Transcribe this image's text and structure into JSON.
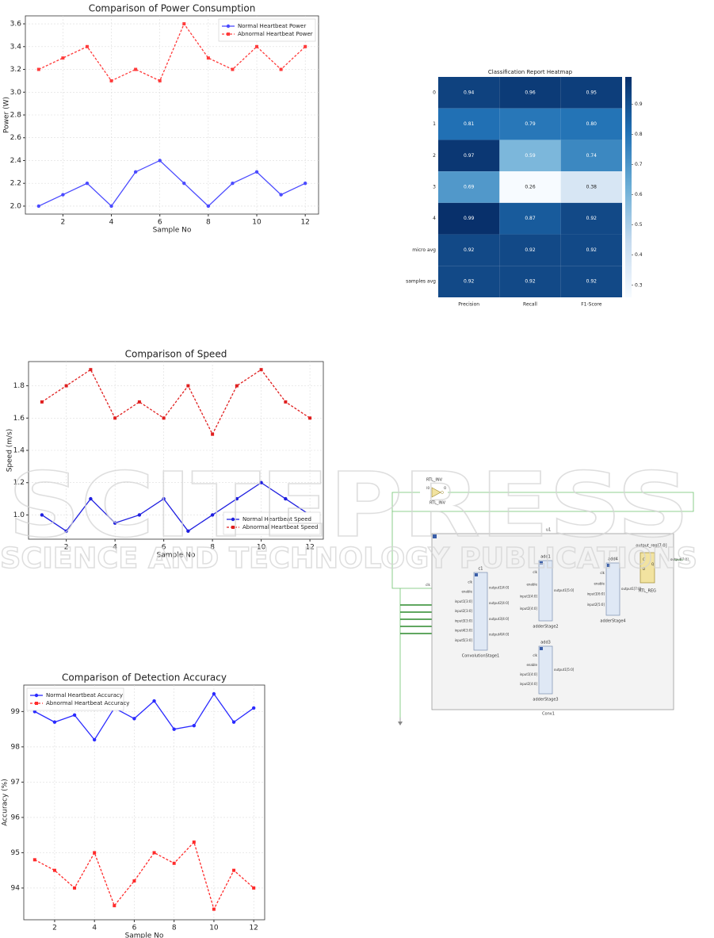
{
  "chart_data": [
    {
      "type": "line",
      "title": "Comparison of Power Consumption",
      "x_label": "Sample No",
      "y_label": "Power (W)",
      "x": [
        1,
        2,
        3,
        4,
        5,
        6,
        7,
        8,
        9,
        10,
        11,
        12
      ],
      "series": [
        {
          "name": "Normal Heartbeat Power",
          "color": "#4b4bff",
          "marker": "circle",
          "linestyle": "solid",
          "values": [
            2.0,
            2.1,
            2.2,
            2.0,
            2.3,
            2.4,
            2.2,
            2.0,
            2.2,
            2.3,
            2.1,
            2.2
          ]
        },
        {
          "name": "Abnormal Heartbeat Power",
          "color": "#ff3b3b",
          "marker": "square",
          "linestyle": "dashed",
          "values": [
            3.2,
            3.3,
            3.4,
            3.1,
            3.2,
            3.1,
            3.6,
            3.3,
            3.2,
            3.4,
            3.2,
            3.4
          ]
        }
      ],
      "xlim": [
        0.45,
        12.55
      ],
      "xticks": [
        2,
        4,
        6,
        8,
        10,
        12
      ],
      "ylim": [
        1.93,
        3.67
      ],
      "yticks": [
        {
          "value": 2.0,
          "label": "2.0"
        },
        2.2,
        2.4,
        2.6,
        2.8,
        {
          "value": 3.0,
          "label": "3.0"
        },
        3.2,
        3.4,
        3.6
      ],
      "grid": true,
      "legend": "upper right"
    },
    {
      "type": "line",
      "title": "Comparison of Speed",
      "x_label": "Sample No",
      "y_label": "Speed (m/s)",
      "x": [
        1,
        2,
        3,
        4,
        5,
        6,
        7,
        8,
        9,
        10,
        11,
        12
      ],
      "series": [
        {
          "name": "Normal Heartbeat Speed",
          "color": "#1f1fe0",
          "marker": "circle",
          "linestyle": "solid",
          "values": [
            1.0,
            0.9,
            1.1,
            0.95,
            1.0,
            1.1,
            0.9,
            1.0,
            1.1,
            1.2,
            1.1,
            1.0
          ]
        },
        {
          "name": "Abnormal Heartbeat Speed",
          "color": "#e01f1f",
          "marker": "square",
          "linestyle": "dashed",
          "values": [
            1.7,
            1.8,
            1.9,
            1.6,
            1.7,
            1.6,
            1.8,
            1.5,
            1.8,
            1.9,
            1.7,
            1.6
          ]
        }
      ],
      "xlim": [
        0.45,
        12.55
      ],
      "xticks": [
        2,
        4,
        6,
        8,
        10,
        12
      ],
      "ylim": [
        0.85,
        1.95
      ],
      "yticks": [
        {
          "value": 1.0,
          "label": "1.0"
        },
        1.2,
        1.4,
        1.6,
        1.8
      ],
      "grid": true,
      "legend": "lower right"
    },
    {
      "type": "line",
      "title": "Comparison of Detection Accuracy",
      "x_label": "Sample No",
      "y_label": "Accuracy (%)",
      "x": [
        1,
        2,
        3,
        4,
        5,
        6,
        7,
        8,
        9,
        10,
        11,
        12
      ],
      "series": [
        {
          "name": "Normal Heartbeat Accuracy",
          "color": "#2a2aff",
          "marker": "circle",
          "linestyle": "solid",
          "values": [
            99.0,
            98.7,
            98.9,
            98.2,
            99.1,
            98.8,
            99.3,
            98.5,
            98.6,
            99.5,
            98.7,
            99.1
          ]
        },
        {
          "name": "Abnormal Heartbeat Accuracy",
          "color": "#ff2a2a",
          "marker": "square",
          "linestyle": "dashed",
          "values": [
            94.8,
            94.5,
            94.0,
            95.0,
            93.5,
            94.2,
            95.0,
            94.7,
            95.3,
            93.4,
            94.5,
            94.0
          ]
        }
      ],
      "xlim": [
        0.45,
        12.55
      ],
      "xticks": [
        2,
        4,
        6,
        8,
        10,
        12
      ],
      "ylim": [
        93.1,
        99.75
      ],
      "yticks": [
        94,
        95,
        96,
        97,
        98,
        99
      ],
      "grid": true,
      "legend": "upper left"
    },
    {
      "type": "heatmap",
      "title": "Classification Report Heatmap",
      "x": [
        "Precision",
        "Recall",
        "F1-Score"
      ],
      "y": [
        "0",
        "1",
        "2",
        "3",
        "4",
        "micro avg",
        "samples avg"
      ],
      "values": [
        [
          0.94,
          0.96,
          0.95
        ],
        [
          0.81,
          0.79,
          0.8
        ],
        [
          0.97,
          0.59,
          0.74
        ],
        [
          0.69,
          0.26,
          0.38
        ],
        [
          0.99,
          0.87,
          0.92
        ],
        [
          0.92,
          0.92,
          0.92
        ],
        [
          0.92,
          0.92,
          0.92
        ]
      ],
      "value_labels": [
        [
          "0.94",
          "0.96",
          "0.95"
        ],
        [
          "0.81",
          "0.79",
          "0.80"
        ],
        [
          "0.97",
          "0.59",
          "0.74"
        ],
        [
          "0.69",
          "0.26",
          "0.38"
        ],
        [
          "0.99",
          "0.87",
          "0.92"
        ],
        [
          "0.92",
          "0.92",
          "0.92"
        ],
        [
          "0.92",
          "0.92",
          "0.92"
        ]
      ],
      "colormap": "Blues",
      "colorbar_lim": [
        0.26,
        0.99
      ],
      "colorbar_ticks": [
        0.3,
        0.4,
        0.5,
        0.6,
        0.7,
        0.8,
        0.9
      ]
    }
  ],
  "diagram": {
    "inverter": {
      "name": "RTL_INV",
      "instance": "RTL_INV",
      "in": "I0",
      "out": "O"
    },
    "module": {
      "name": "u1",
      "type": "Conv1"
    },
    "blocks": [
      {
        "name": "c1",
        "type": "ConvolutionStage1",
        "inputs": [
          "clk",
          "enable",
          "input1[3:0]",
          "input2[3:0]",
          "input3[3:0]",
          "input4[3:0]",
          "input5[3:0]"
        ],
        "outputs": [
          "output1[4:0]",
          "output2[4:0]",
          "output3[4:0]",
          "output4[4:0]"
        ]
      },
      {
        "name": "add1",
        "type": "adderStage2",
        "inputs": [
          "clk",
          "enable",
          "input1[4:0]",
          "input2[4:0]"
        ],
        "outputs": [
          "output1[5:0]"
        ]
      },
      {
        "name": "add3",
        "type": "adderStage3",
        "inputs": [
          "clk",
          "enable",
          "input1[4:0]",
          "input2[4:0]"
        ],
        "outputs": [
          "output1[5:0]"
        ]
      },
      {
        "name": "add4",
        "type": "adderStage4",
        "inputs": [
          "clk",
          "enable",
          "input1[6:0]",
          "input2[5:0]"
        ],
        "outputs": [
          "output1[7:0]"
        ]
      }
    ],
    "register": {
      "name": "output_reg[7:0]",
      "type": "RTL_REG",
      "pins": [
        "C",
        "D",
        "Q"
      ]
    },
    "ports": {
      "clk": "clk",
      "output": "output[7:0]"
    }
  },
  "watermark": {
    "title": "SCITEPRESS",
    "subtitle": "SCIENCE AND TECHNOLOGY PUBLICATIONS"
  }
}
